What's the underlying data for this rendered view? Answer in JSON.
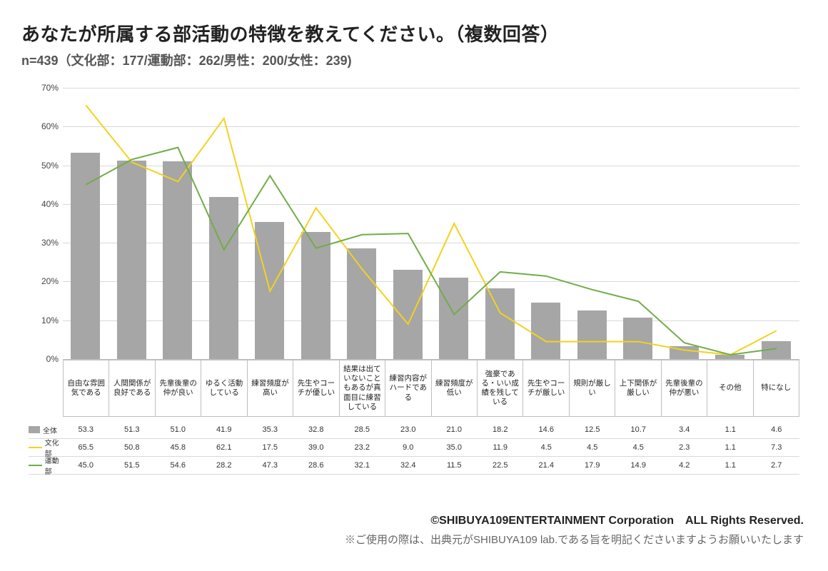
{
  "title": "あなたが所属する部活動の特徴を教えてください。（複数回答）",
  "subtitle": "n=439（文化部：177/運動部：262/男性：200/女性：239)",
  "chart": {
    "type": "bar+line",
    "y_axis": {
      "min": 0,
      "max": 70,
      "step": 10,
      "suffix": "%"
    },
    "grid_color": "#d9d9d9",
    "axis_color": "#bfbfbf",
    "background_color": "#ffffff",
    "categories": [
      "自由な雰囲気である",
      "人間関係が良好である",
      "先輩後輩の仲が良い",
      "ゆるく活動している",
      "練習頻度が高い",
      "先生やコーチが優しい",
      "結果は出ていないこともあるが真面目に練習している",
      "練習内容がハードである",
      "練習頻度が低い",
      "強豪である・いい成績を残している",
      "先生やコーチが厳しい",
      "規則が厳しい",
      "上下関係が厳しい",
      "先輩後輩の仲が悪い",
      "その他",
      "特になし"
    ],
    "series": [
      {
        "key": "all",
        "label": "全体",
        "kind": "bar",
        "color": "#a6a6a6",
        "values": [
          53.3,
          51.3,
          51.0,
          41.9,
          35.3,
          32.8,
          28.5,
          23.0,
          21.0,
          18.2,
          14.6,
          12.5,
          10.7,
          3.4,
          1.1,
          4.6
        ]
      },
      {
        "key": "culture",
        "label": "文化部",
        "kind": "line",
        "color": "#f2d21f",
        "line_width": 2,
        "values": [
          65.5,
          50.8,
          45.8,
          62.1,
          17.5,
          39.0,
          23.2,
          9.0,
          35.0,
          11.9,
          4.5,
          4.5,
          4.5,
          2.3,
          1.1,
          7.3
        ]
      },
      {
        "key": "sports",
        "label": "運動部",
        "kind": "line",
        "color": "#70ad47",
        "line_width": 2,
        "values": [
          45.0,
          51.5,
          54.6,
          28.2,
          47.3,
          28.6,
          32.1,
          32.4,
          11.5,
          22.5,
          21.4,
          17.9,
          14.9,
          4.2,
          1.1,
          2.7
        ]
      }
    ],
    "label_fontsize": 11,
    "tick_fontsize": 12
  },
  "footer": {
    "copyright": "©SHIBUYA109ENTERTAINMENT Corporation　ALL Rights Reserved.",
    "note": "※ご使用の際は、出典元がSHIBUYA109 lab.である旨を明記くださいますようお願いいたします"
  }
}
